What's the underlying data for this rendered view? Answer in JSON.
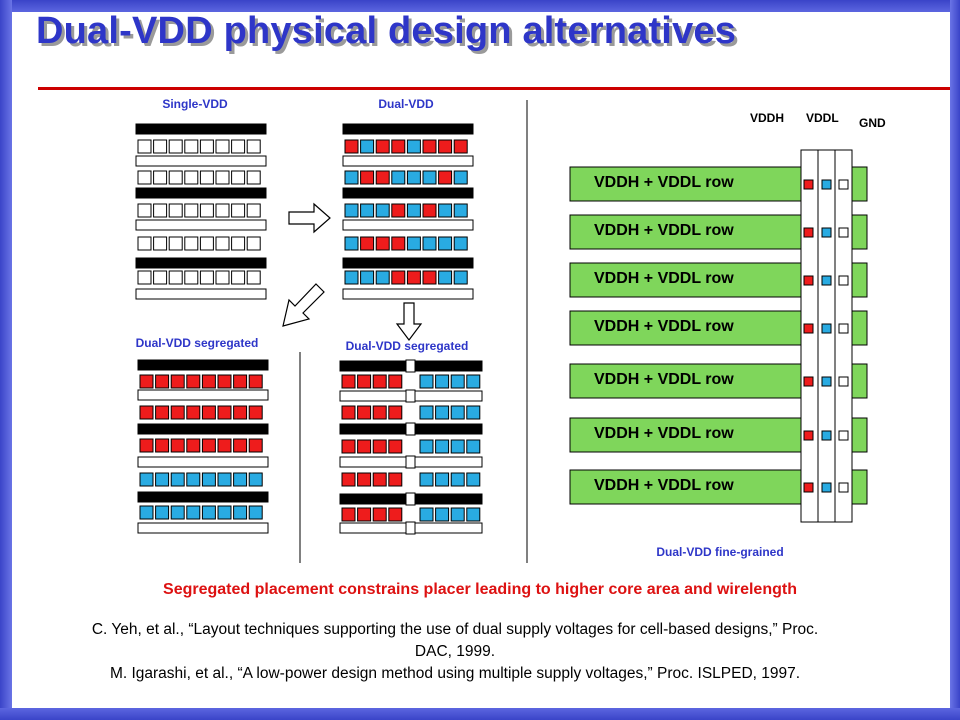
{
  "title": "Dual-VDD physical design alternatives",
  "captions": {
    "single_vdd": "Single-VDD",
    "dual_vdd": "Dual-VDD",
    "segregated_a": "Dual-VDD segregated",
    "segregated_b": "Dual-VDD segregated",
    "fine_grained": "Dual-VDD fine-grained"
  },
  "rails": {
    "vddh": "VDDH",
    "vddl": "VDDL",
    "gnd": "GND"
  },
  "row_labels": [
    "VDDH + VDDL row",
    "VDDH + VDDL row",
    "VDDH + VDDL row",
    "VDDH + VDDL row",
    "VDDH + VDDL row",
    "VDDH + VDDL row",
    "VDDH + VDDL row"
  ],
  "statement": "Segregated placement constrains placer leading to higher core area and wirelength",
  "references": [
    {
      "line1": "C. Yeh, et al., “Layout techniques supporting the use of dual supply voltages for cell-based designs,” Proc.",
      "line2": "DAC, 1999."
    },
    {
      "line1": "M. Igarashi, et al., “A low-power design method using multiple supply voltages,” Proc. ISLPED, 1997."
    }
  ],
  "colors": {
    "accent": "#2e36c8",
    "statement": "#dd1111",
    "cell_high": "#ee1c1c",
    "cell_low": "#29abe2",
    "row_fill": "#7fd65b",
    "frame": "#3a44c8"
  }
}
